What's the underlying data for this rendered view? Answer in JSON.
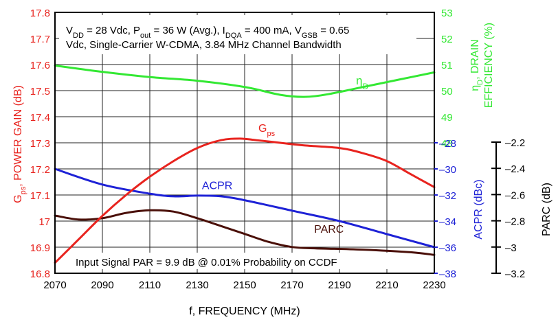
{
  "chart_data": {
    "type": "line",
    "x_axis": {
      "label": "f, FREQUENCY (MHz)",
      "range": [
        2070,
        2230
      ],
      "ticks": [
        2070,
        2090,
        2110,
        2130,
        2150,
        2170,
        2190,
        2210,
        2230
      ],
      "tick_labels": [
        "2070",
        "2090",
        "2110",
        "2130",
        "2150",
        "2170",
        "2190",
        "2210",
        "2230"
      ]
    },
    "left_axis": {
      "label_main": "G",
      "label_sub": "ps",
      "label_rest": ", POWER GAIN (dB)",
      "range": [
        16.8,
        17.8
      ],
      "ticks": [
        16.8,
        16.9,
        17.0,
        17.1,
        17.2,
        17.3,
        17.4,
        17.5,
        17.6,
        17.7,
        17.8
      ],
      "tick_labels": [
        "16.8",
        "16.9",
        "17",
        "17.1",
        "17.2",
        "17.3",
        "17.4",
        "17.5",
        "17.6",
        "17.7",
        "17.8"
      ]
    },
    "eff_axis": {
      "label_line1_pre": "η",
      "label_line1_sub": "D",
      "label_line1_post": ", DRAIN",
      "label_line2": "EFFICIENCY (%)",
      "range": [
        48,
        53
      ],
      "ticks": [
        48,
        49,
        50,
        51,
        52,
        53
      ],
      "tick_labels": [
        "48",
        "49",
        "50",
        "51",
        "52",
        "53"
      ]
    },
    "acpr_axis": {
      "label": "ACPR (dBc)",
      "range": [
        -38,
        -28
      ],
      "ticks": [
        -38,
        -36,
        -34,
        -32,
        -30,
        -28
      ],
      "tick_labels": [
        "–38",
        "–36",
        "–34",
        "–32",
        "–30",
        "–28"
      ]
    },
    "parc_axis": {
      "label": "PARC (dB)",
      "range": [
        -3.2,
        -2.2
      ],
      "ticks": [
        -3.2,
        -3.0,
        -2.8,
        -2.6,
        -2.4,
        -2.2
      ],
      "tick_labels": [
        "–3.2",
        "–3",
        "–2.8",
        "–2.6",
        "–2.4",
        "–2.2"
      ]
    },
    "annotation": {
      "line1": [
        {
          "t": "V",
          "s": "n"
        },
        {
          "t": "DD",
          "s": "sub"
        },
        {
          "t": " = 28 Vdc, P",
          "s": "n"
        },
        {
          "t": "out",
          "s": "sub"
        },
        {
          "t": " = 36 W (Avg.), I",
          "s": "n"
        },
        {
          "t": "DQA",
          "s": "sub"
        },
        {
          "t": " = 400 mA, V",
          "s": "n"
        },
        {
          "t": "GSB",
          "s": "sub"
        },
        {
          "t": " = 0.65",
          "s": "n"
        }
      ],
      "line2": "Vdc, Single-Carrier W-CDMA, 3.84 MHz Channel Bandwidth",
      "bottom": "Input Signal PAR = 9.9 dB @ 0.01% Probability on CCDF"
    },
    "series": [
      {
        "name": "G",
        "name_sub": "ps",
        "axis": "left",
        "color": "#e8231e",
        "x": [
          2070,
          2080,
          2090,
          2100,
          2110,
          2120,
          2130,
          2140,
          2148,
          2155,
          2165,
          2175,
          2190,
          2200,
          2210,
          2220,
          2230
        ],
        "y": [
          16.84,
          16.93,
          17.02,
          17.1,
          17.17,
          17.23,
          17.28,
          17.31,
          17.316,
          17.31,
          17.3,
          17.29,
          17.28,
          17.26,
          17.23,
          17.18,
          17.13
        ]
      },
      {
        "name": "η",
        "name_sub": "D",
        "axis": "eff",
        "color": "#33e833",
        "x": [
          2070,
          2090,
          2110,
          2130,
          2150,
          2165,
          2175,
          2185,
          2200,
          2215,
          2230
        ],
        "y": [
          50.96,
          50.72,
          50.52,
          50.38,
          50.14,
          49.84,
          49.76,
          49.86,
          50.14,
          50.42,
          50.7
        ]
      },
      {
        "name": "ACPR",
        "axis": "acpr",
        "color": "#1e22d6",
        "x": [
          2070,
          2090,
          2110,
          2120,
          2130,
          2140,
          2150,
          2170,
          2190,
          2210,
          2230
        ],
        "y": [
          -30.0,
          -31.2,
          -31.9,
          -32.1,
          -32.05,
          -32.1,
          -32.4,
          -33.2,
          -34.0,
          -35.0,
          -36.0
        ],
        "label_x": 2132,
        "label_y": -31.55
      },
      {
        "name": "PARC",
        "axis": "parc",
        "color": "#4a0f08",
        "x": [
          2070,
          2080,
          2090,
          2100,
          2110,
          2120,
          2130,
          2140,
          2150,
          2160,
          2170,
          2180,
          2200,
          2220,
          2230
        ],
        "y": [
          -2.76,
          -2.79,
          -2.78,
          -2.74,
          -2.72,
          -2.73,
          -2.78,
          -2.84,
          -2.9,
          -2.96,
          -3.0,
          -3.01,
          -3.02,
          -3.04,
          -3.06
        ],
        "label_x": 2188,
        "label_y": -2.89
      }
    ]
  }
}
